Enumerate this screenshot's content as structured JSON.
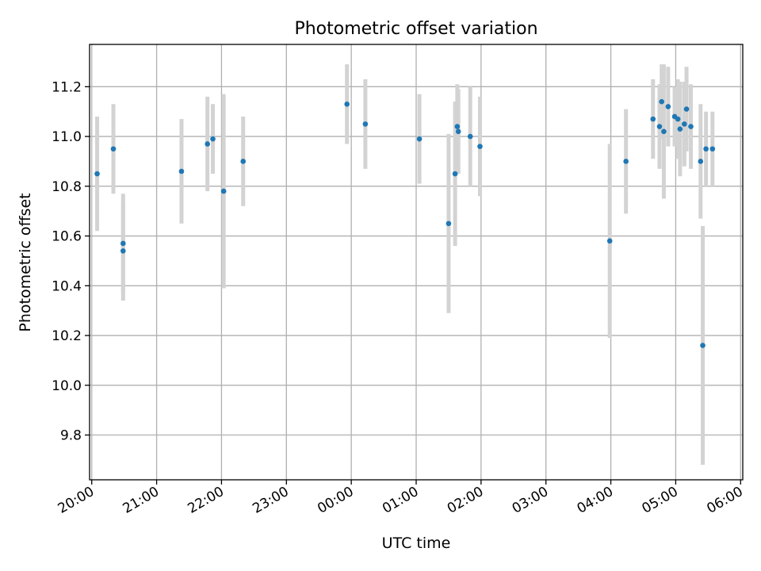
{
  "chart_data": {
    "type": "scatter",
    "title": "Photometric offset variation",
    "xlabel": "UTC time",
    "ylabel": "Photometric offset",
    "x_ticks": [
      "20:00",
      "21:00",
      "22:00",
      "23:00",
      "00:00",
      "01:00",
      "02:00",
      "03:00",
      "04:00",
      "05:00",
      "06:00"
    ],
    "y_ticks": [
      "9.8",
      "10.0",
      "10.2",
      "10.4",
      "10.6",
      "10.8",
      "11.0",
      "11.2"
    ],
    "xlim": [
      "19:58",
      "06:02"
    ],
    "ylim": [
      9.62,
      11.37
    ],
    "grid": true,
    "point_color": "#1f77b4",
    "errorbar_color": "#d3d3d3",
    "series": [
      {
        "x": [
          "20:05",
          "20:20",
          "20:29",
          "20:29",
          "21:23",
          "21:47",
          "21:52",
          "22:02",
          "22:20",
          "23:56",
          "00:13",
          "01:03",
          "01:30",
          "01:36",
          "01:38",
          "01:39",
          "01:50",
          "01:59",
          "03:59",
          "04:14",
          "04:39",
          "04:45",
          "04:47",
          "04:49",
          "04:53",
          "04:59",
          "05:02",
          "05:04",
          "05:08",
          "05:10",
          "05:14",
          "05:23",
          "05:25",
          "05:28",
          "05:34"
        ],
        "y": [
          10.85,
          10.95,
          10.57,
          10.54,
          10.86,
          10.97,
          10.99,
          10.78,
          10.9,
          11.13,
          11.05,
          10.99,
          10.65,
          10.85,
          11.04,
          11.02,
          11.0,
          10.96,
          10.58,
          10.9,
          11.07,
          11.04,
          11.14,
          11.02,
          11.12,
          11.08,
          11.07,
          11.03,
          11.05,
          11.11,
          11.04,
          10.9,
          10.16,
          10.95,
          10.95
        ],
        "yerr": [
          0.23,
          0.18,
          0.2,
          0.2,
          0.21,
          0.19,
          0.14,
          0.39,
          0.18,
          0.16,
          0.18,
          0.18,
          0.36,
          0.29,
          0.17,
          0.17,
          0.2,
          0.2,
          0.39,
          0.21,
          0.16,
          0.17,
          0.15,
          0.27,
          0.16,
          0.12,
          0.16,
          0.19,
          0.17,
          0.17,
          0.17,
          0.23,
          0.48,
          0.15,
          0.15
        ]
      }
    ]
  }
}
